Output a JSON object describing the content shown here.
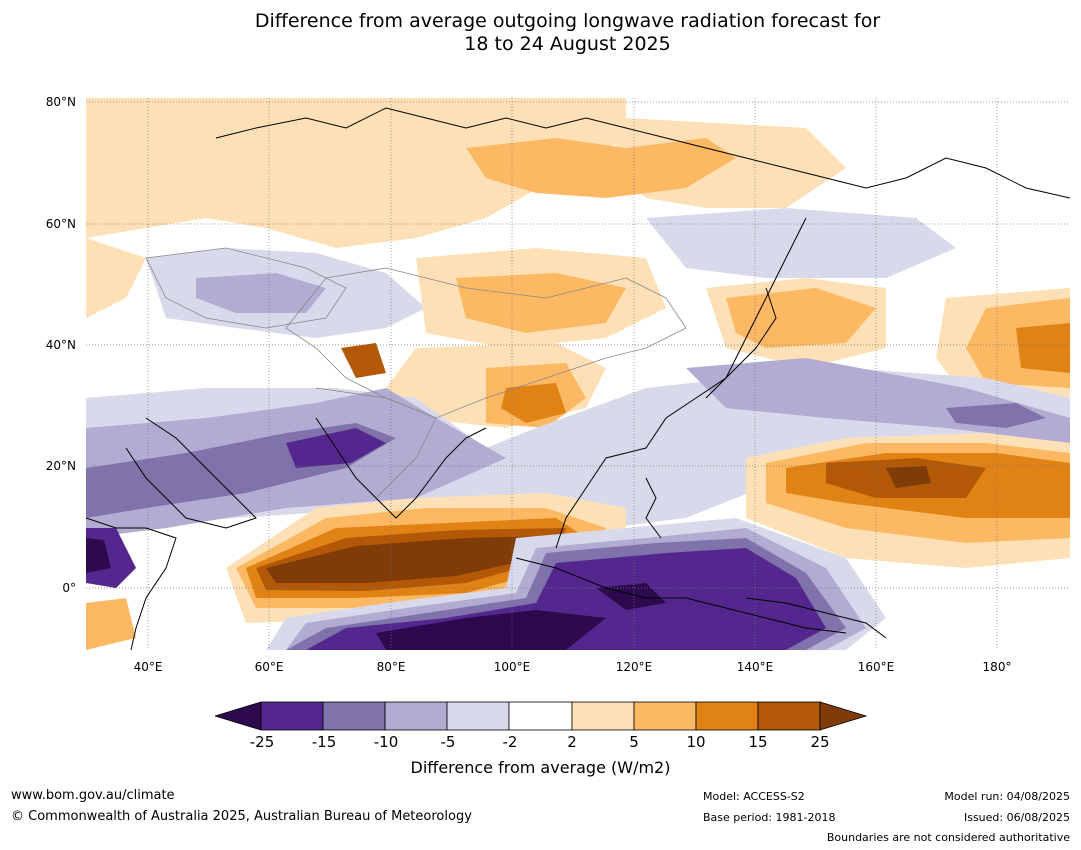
{
  "title_line1": "Difference from average outgoing longwave radiation forecast for",
  "title_line2": "18 to 24 August 2025",
  "lat_labels": [
    "80°N",
    "60°N",
    "40°N",
    "20°N",
    "0°"
  ],
  "lon_labels": [
    "40°E",
    "60°E",
    "80°E",
    "100°E",
    "120°E",
    "140°E",
    "160°E",
    "180°"
  ],
  "colorbar": {
    "ticks": [
      "-25",
      "-15",
      "-10",
      "-5",
      "-2",
      "2",
      "5",
      "10",
      "15",
      "25"
    ],
    "label": "Difference from average (W/m2)",
    "colors": [
      "#2d0a4e",
      "#54278f",
      "#8073ac",
      "#b2abd2",
      "#d8daeb",
      "#ffffff",
      "#fee0b6",
      "#fdb863",
      "#e08214",
      "#b35806",
      "#7f3b08"
    ]
  },
  "footer": {
    "website": "www.bom.gov.au/climate",
    "copyright": "© Commonwealth of Australia 2025, Australian Bureau of Meteorology",
    "model": "Model: ACCESS-S2",
    "base_period": "Base period: 1981-2018",
    "model_run": "Model run: 04/08/2025",
    "issued": "Issued: 06/08/2025",
    "disclaimer": "Boundaries are not considered authoritative"
  }
}
